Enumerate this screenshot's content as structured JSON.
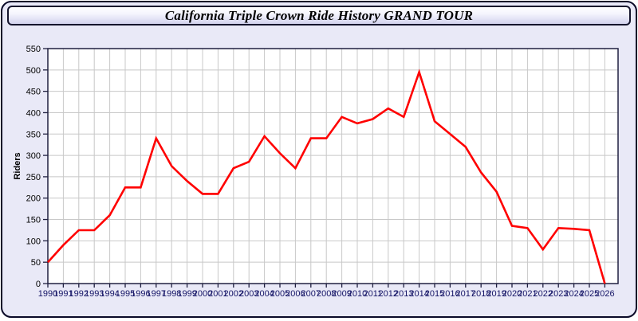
{
  "page": {
    "title": "California Triple Crown Ride History GRAND TOUR"
  },
  "colors": {
    "line": "#ff0000",
    "grid": "#c8c8c8",
    "plot_border": "#202040",
    "plot_bg": "#ffffff",
    "page_bg": "#e9e9f7",
    "outer_border": "#0a0a28",
    "x_label": "#141466",
    "y_label": "#000000",
    "ylabel_text": "#000000"
  },
  "chart_data": {
    "type": "line",
    "title": "California Triple Crown Ride History GRAND TOUR",
    "xlabel": "",
    "ylabel": "Riders",
    "ylim": [
      0,
      550
    ],
    "ytick_step": 50,
    "grid": true,
    "legend": false,
    "x": [
      1990,
      1991,
      1992,
      1993,
      1994,
      1995,
      1996,
      1997,
      1998,
      1999,
      2000,
      2001,
      2002,
      2003,
      2004,
      2005,
      2006,
      2007,
      2008,
      2009,
      2010,
      2011,
      2012,
      2013,
      2014,
      2015,
      2016,
      2017,
      2018,
      2019,
      2020,
      2021,
      2022,
      2023,
      2024,
      2025,
      2026
    ],
    "series": [
      {
        "name": "Riders",
        "values": [
          50,
          90,
          125,
          125,
          160,
          225,
          225,
          340,
          275,
          240,
          210,
          210,
          270,
          285,
          345,
          305,
          270,
          340,
          340,
          390,
          375,
          385,
          410,
          390,
          495,
          380,
          350,
          320,
          260,
          215,
          135,
          130,
          80,
          130,
          128,
          125,
          0
        ]
      }
    ]
  }
}
